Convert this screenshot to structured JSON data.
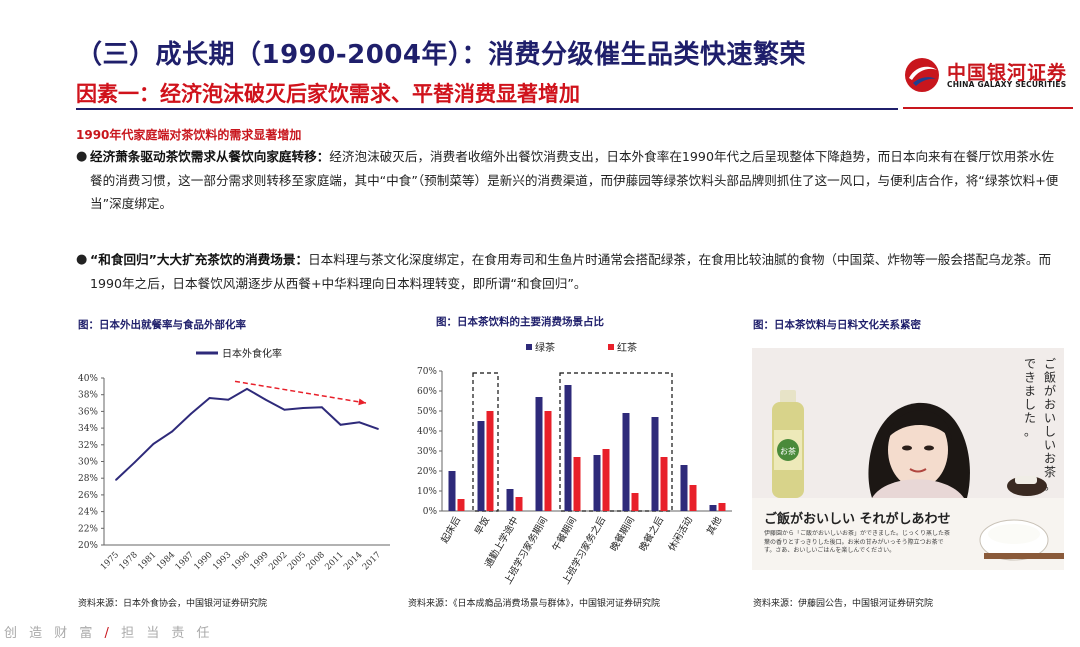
{
  "header": {
    "title": "（三）成长期（1990-2004年）：消费分级催生品类快速繁荣",
    "subtitle": "因素一：经济泡沫破灭后家饮需求、平替消费显著增加",
    "logo_cn": "中国银河证券",
    "logo_en": "CHINA GALAXY SECURITIES"
  },
  "section_heading": "1990年代家庭端对茶饮料的需求显著增加",
  "paragraphs": [
    {
      "bullet": "●",
      "lead": "经济萧条驱动茶饮需求从餐饮向家庭转移：",
      "body": "经济泡沫破灭后，消费者收缩外出餐饮消费支出，日本外食率在1990年代之后呈现整体下降趋势，而日本向来有在餐厅饮用茶水佐餐的消费习惯，这一部分需求则转移至家庭端，其中“中食”（预制菜等）是新兴的消费渠道，而伊藤园等绿茶饮料头部品牌则抓住了这一风口，与便利店合作，将“绿茶饮料+便当”深度绑定。"
    },
    {
      "bullet": "●",
      "lead": "“和食回归”大大扩充茶饮的消费场景：",
      "body": "日本料理与茶文化深度绑定，在食用寿司和生鱼片时通常会搭配绿茶，在食用比较油腻的食物（中国菜、炸物等一般会搭配乌龙茶。而1990年之后，日本餐饮风潮逐步从西餐+中华料理向日本料理转变，即所谓“和食回归”。"
    }
  ],
  "figures": {
    "fig1": {
      "caption": "图：日本外出就餐率与食品外部化率",
      "source": "资料来源：日本外食协会，中国银河证券研究院"
    },
    "fig2": {
      "caption": "图：日本茶饮料的主要消费场景占比",
      "source": "资料来源：《日本成瘾品消费场景与群体》，中国银河证券研究院"
    },
    "fig3": {
      "caption": "图：日本茶饮料与日料文化关系紧密",
      "source": "资料来源：伊藤园公告，中国银河证券研究院",
      "photo_vertical_text": "ご飯がおいしいお茶。できました。",
      "photo_slogan": "ご飯がおいしい それがしあわせ",
      "photo_body": "伊藤園から「ご飯がおいしいお茶」ができました。じっくり蒸した茶葉の香りとすっきりした後口。お米の甘みがいっそう際立つお茶です。さあ、おいしいごはんを楽しんでください。",
      "bottle_label": "お茶"
    }
  },
  "chart_data": [
    {
      "type": "line",
      "title": "",
      "legend": [
        "日本外食化率"
      ],
      "legend_position": "top",
      "x": [
        "1975",
        "1978",
        "1981",
        "1984",
        "1987",
        "1990",
        "1993",
        "1996",
        "1999",
        "2002",
        "2005",
        "2008",
        "2011",
        "2014",
        "2017"
      ],
      "series": [
        {
          "name": "日本外食化率",
          "color": "#2e2a7a",
          "values": [
            27.8,
            29.9,
            32.1,
            33.6,
            35.7,
            37.6,
            37.4,
            38.7,
            37.4,
            36.2,
            36.4,
            36.5,
            34.4,
            34.7,
            33.9
          ]
        }
      ],
      "ylim": [
        20,
        40
      ],
      "yticks": [
        20,
        22,
        24,
        26,
        28,
        30,
        32,
        34,
        36,
        38,
        40
      ],
      "y_unit": "%",
      "annotation": "red dashed downward-trend arrow over 1996-2017",
      "grid": false
    },
    {
      "type": "bar",
      "title": "",
      "legend_position": "top",
      "categories": [
        "起床后",
        "早饭",
        "通勤上学途中",
        "上班学习家务期间",
        "午餐期间",
        "上班学习家务之后",
        "晚餐期间",
        "晚餐之后",
        "休闲活动",
        "其他"
      ],
      "series": [
        {
          "name": "绿茶",
          "color": "#2e2a7a",
          "values": [
            20,
            45,
            11,
            57,
            63,
            28,
            49,
            47,
            23,
            3
          ]
        },
        {
          "name": "红茶",
          "color": "#e8202a",
          "values": [
            6,
            50,
            7,
            50,
            27,
            31,
            9,
            27,
            13,
            4
          ]
        }
      ],
      "ylim": [
        0,
        70
      ],
      "yticks": [
        0,
        10,
        20,
        30,
        40,
        50,
        60,
        70
      ],
      "y_unit": "%",
      "highlighted_categories": [
        "早饭",
        "午餐期间",
        "上班学习家务之后",
        "晚餐期间",
        "晚餐之后"
      ],
      "grid": false
    }
  ],
  "footer": {
    "motto_left": "创 造 财 富",
    "slash": "/",
    "motto_right": "担 当 责 任"
  }
}
